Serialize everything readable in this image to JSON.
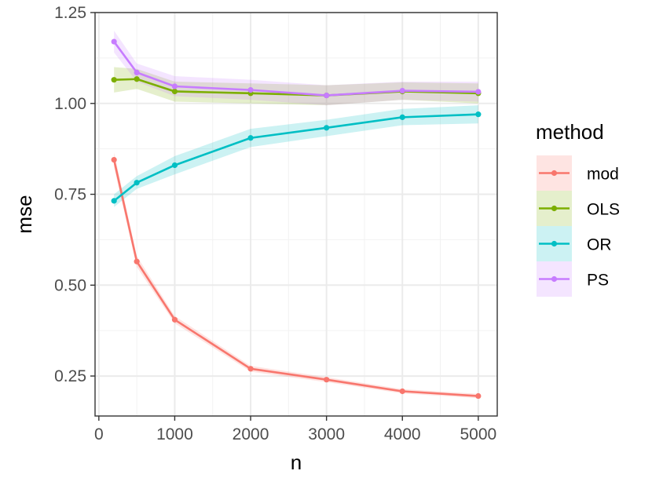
{
  "chart_data": {
    "type": "line",
    "xlabel": "n",
    "ylabel": "mse",
    "xlim": [
      -50,
      5250
    ],
    "ylim": [
      0.14,
      1.25
    ],
    "x_ticks": [
      0,
      1000,
      2000,
      3000,
      4000,
      5000
    ],
    "x_tick_labels": [
      "0",
      "1000",
      "2000",
      "3000",
      "4000",
      "5000"
    ],
    "x_minor_ticks": [
      500,
      1500,
      2500,
      3500,
      4500
    ],
    "y_ticks": [
      0.25,
      0.5,
      0.75,
      1.0,
      1.25
    ],
    "y_tick_labels": [
      "0.25",
      "0.50",
      "0.75",
      "1.00",
      "1.25"
    ],
    "y_minor_ticks": [
      0.375,
      0.625,
      0.875,
      1.125
    ],
    "grid": true,
    "legend_title": "method",
    "legend_position": "right",
    "x": [
      200,
      500,
      1000,
      2000,
      3000,
      4000,
      5000
    ],
    "series": [
      {
        "name": "mod",
        "color": "#F8766D",
        "values": [
          0.845,
          0.565,
          0.405,
          0.27,
          0.24,
          0.208,
          0.195
        ],
        "lower": [
          0.825,
          0.55,
          0.395,
          0.262,
          0.233,
          0.202,
          0.189
        ],
        "upper": [
          0.865,
          0.58,
          0.415,
          0.278,
          0.247,
          0.214,
          0.201
        ]
      },
      {
        "name": "OLS",
        "color": "#7CAE00",
        "values": [
          1.065,
          1.067,
          1.033,
          1.028,
          1.022,
          1.033,
          1.028
        ],
        "lower": [
          1.03,
          1.04,
          1.005,
          1.0,
          0.995,
          1.01,
          1.0
        ],
        "upper": [
          1.1,
          1.095,
          1.06,
          1.055,
          1.05,
          1.058,
          1.055
        ]
      },
      {
        "name": "OR",
        "color": "#00BFC4",
        "values": [
          0.732,
          0.782,
          0.83,
          0.905,
          0.933,
          0.962,
          0.97
        ],
        "lower": [
          0.715,
          0.765,
          0.805,
          0.88,
          0.91,
          0.94,
          0.945
        ],
        "upper": [
          0.75,
          0.8,
          0.855,
          0.93,
          0.955,
          0.985,
          0.995
        ]
      },
      {
        "name": "PS",
        "color": "#C77CFF",
        "values": [
          1.17,
          1.085,
          1.047,
          1.037,
          1.022,
          1.035,
          1.032
        ],
        "lower": [
          1.14,
          1.06,
          1.02,
          1.01,
          0.995,
          1.01,
          1.005
        ],
        "upper": [
          1.2,
          1.11,
          1.075,
          1.065,
          1.05,
          1.06,
          1.06
        ]
      }
    ]
  }
}
